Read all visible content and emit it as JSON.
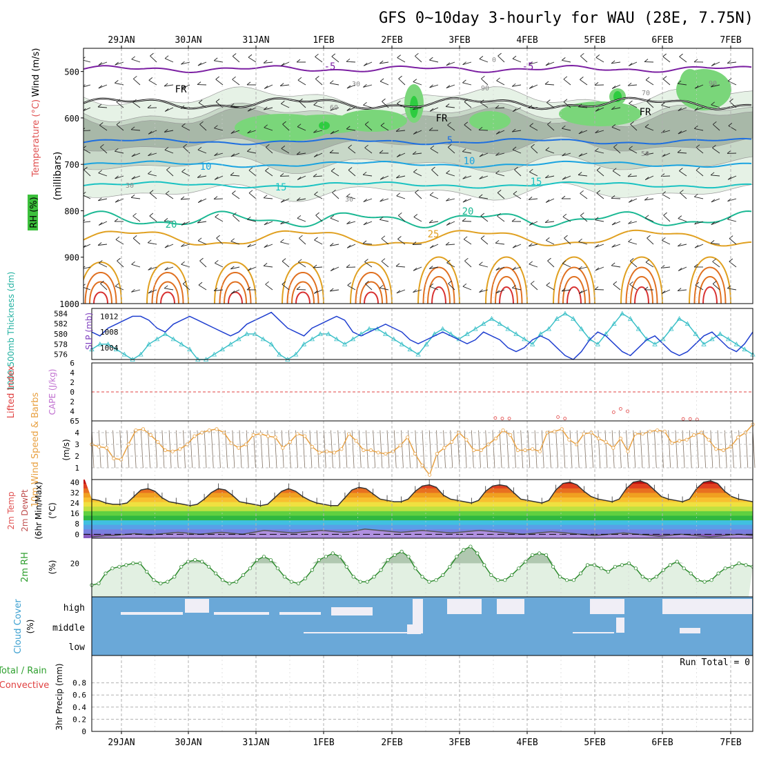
{
  "chart_data": [
    {
      "type": "meteogram-vertical",
      "title": "GFS 0~10day 3-hourly for WAU (28E, 7.75N)",
      "x_ticks": [
        "29JAN",
        "30JAN",
        "31JAN",
        "1FEB",
        "2FEB",
        "3FEB",
        "4FEB",
        "5FEB",
        "6FEB",
        "7FEB"
      ],
      "ylabel_left": [
        "RH (%)",
        "Temperature (°C)",
        "Wind (m/s)"
      ],
      "ylabel_right": "(millibars)",
      "yticks": [
        "500",
        "600",
        "700",
        "800",
        "900",
        "1000"
      ],
      "ylim": [
        1000,
        450
      ],
      "isotherm_labels": [
        "-5",
        "-5",
        "FR",
        "FR",
        "FR",
        "5",
        "10",
        "10",
        "15",
        "15",
        "20",
        "20",
        "25"
      ],
      "rh_labels": [
        "0",
        "30",
        "30",
        "30",
        "50",
        "60",
        "70",
        "90",
        "90"
      ],
      "colors": {
        "rh_light": "#e6f2e6",
        "rh_mid": "#c8d8c8",
        "rh_grey": "#a8b8a8",
        "rh_green": "#7ad67a",
        "rh_bright": "#2ecc40",
        "neg5": "#7b1fa2",
        "five": "#1e6fe0",
        "ten": "#19a3e0",
        "fifteen": "#19c2c2",
        "twenty": "#1ab893",
        "twentyfive": "#e0a020",
        "warm1": "#e07020",
        "warm2": "#d83030"
      }
    },
    {
      "type": "line",
      "ylabel": [
        "1000-500mb Thickness (dm)",
        "SLP (mb)"
      ],
      "yticks_left": [
        "584",
        "582",
        "580",
        "578",
        "576"
      ],
      "yticks_right": [
        "1012",
        "1008",
        "1004"
      ],
      "series": [
        {
          "name": "SLP",
          "color": "#1f3fd0",
          "values": [
            1008,
            1007,
            1009,
            1010,
            1011,
            1012,
            1012,
            1011,
            1009,
            1008,
            1010,
            1011,
            1012,
            1011,
            1010,
            1009,
            1008,
            1007,
            1008,
            1010,
            1011,
            1012,
            1013,
            1011,
            1009,
            1008,
            1007,
            1009,
            1010,
            1011,
            1012,
            1011,
            1008,
            1007,
            1008,
            1009,
            1010,
            1009,
            1008,
            1006,
            1005,
            1006,
            1007,
            1008,
            1007,
            1006,
            1005,
            1006,
            1008,
            1007,
            1006,
            1004,
            1003,
            1004,
            1006,
            1007,
            1006,
            1004,
            1002,
            1001,
            1003,
            1006,
            1008,
            1007,
            1005,
            1003,
            1002,
            1004,
            1006,
            1007,
            1005,
            1003,
            1002,
            1003,
            1005,
            1007,
            1008,
            1006,
            1004,
            1003,
            1005,
            1008
          ]
        },
        {
          "name": "Thickness",
          "color": "#3cc0c8",
          "values": [
            577,
            578,
            578,
            577,
            576,
            575,
            576,
            578,
            579,
            580,
            579,
            578,
            577,
            575,
            575,
            576,
            577,
            578,
            579,
            580,
            580,
            579,
            578,
            576,
            575,
            576,
            578,
            579,
            580,
            580,
            579,
            578,
            579,
            580,
            581,
            581,
            580,
            579,
            578,
            577,
            576,
            578,
            580,
            581,
            580,
            579,
            580,
            581,
            582,
            583,
            582,
            581,
            580,
            579,
            578,
            580,
            581,
            583,
            584,
            583,
            581,
            579,
            578,
            580,
            582,
            584,
            583,
            581,
            579,
            578,
            579,
            581,
            583,
            582,
            580,
            578,
            579,
            580,
            579,
            578,
            577,
            576
          ]
        }
      ]
    },
    {
      "type": "line",
      "ylabel": [
        "Lifted Index",
        "CAPE (J/kg)"
      ],
      "yticks": [
        "-6",
        "-4",
        "-2",
        "0",
        "2",
        "4",
        "6"
      ],
      "ylim": [
        -6,
        6
      ],
      "series": [
        {
          "name": "CAPE",
          "color": "#e04040",
          "values": [
            [
              58,
              5.4
            ],
            [
              59,
              5.5
            ],
            [
              60,
              5.5
            ],
            [
              67,
              5.2
            ],
            [
              68,
              5.5
            ],
            [
              75,
              4.2
            ],
            [
              76,
              3.5
            ],
            [
              77,
              4.0
            ],
            [
              85,
              5.6
            ],
            [
              86,
              5.6
            ],
            [
              87,
              5.7
            ]
          ]
        }
      ]
    },
    {
      "type": "line",
      "ylabel": [
        "10m Wind Speed & Barbs",
        "(m/s)"
      ],
      "yticks": [
        "5",
        "4",
        "3",
        "2",
        "1"
      ],
      "ylim": [
        0,
        5
      ],
      "series": [
        {
          "name": "Speed",
          "color": "#e8a040",
          "values": [
            3,
            2.8,
            2.7,
            1.8,
            1.7,
            3,
            4.2,
            4.3,
            3.8,
            3.2,
            2.5,
            2.4,
            2.6,
            3,
            3.7,
            4,
            4.2,
            4.3,
            4,
            3.1,
            2.7,
            3,
            3.8,
            3.9,
            3.7,
            3.6,
            2.7,
            3.2,
            3.9,
            3.7,
            2.8,
            2.3,
            2.4,
            2.3,
            2.6,
            3.9,
            3.3,
            2.5,
            2.5,
            2.3,
            2.2,
            2.4,
            2.9,
            3.6,
            2.2,
            1.2,
            0.4,
            2.2,
            2.7,
            3.2,
            4,
            3.4,
            2.5,
            2.5,
            3,
            3.5,
            4.2,
            3.8,
            2.5,
            2.5,
            2.6,
            2.4,
            4,
            4.1,
            4.3,
            3.4,
            3,
            3.9,
            4,
            3.5,
            3.2,
            2.7,
            3.5,
            2.4,
            3.9,
            3.9,
            4.1,
            4.2,
            4.1,
            3.1,
            3.3,
            3.4,
            3.8,
            4,
            3.4,
            2.6,
            2.5,
            2.8,
            3.6,
            4,
            4.7
          ]
        }
      ]
    },
    {
      "type": "area",
      "ylabel": [
        "2m Temp",
        "2m DewPt",
        "(6hr Min/Max)",
        "(°C)"
      ],
      "yticks": [
        "40",
        "32",
        "24",
        "16",
        "8",
        "0"
      ],
      "ylim": [
        -3,
        42
      ],
      "series": [
        {
          "name": "Temp",
          "color": "#333333",
          "values": [
            27,
            26,
            24,
            23,
            23,
            24,
            29,
            34,
            35,
            33,
            28,
            25,
            24,
            23,
            22,
            23,
            27,
            32,
            35,
            34,
            30,
            25,
            24,
            23,
            22,
            23,
            28,
            33,
            35,
            33,
            29,
            26,
            24,
            23,
            22,
            22,
            28,
            34,
            36,
            35,
            31,
            27,
            26,
            25,
            25,
            27,
            33,
            37,
            38,
            36,
            30,
            27,
            26,
            25,
            24,
            26,
            33,
            37,
            38,
            37,
            32,
            27,
            26,
            25,
            24,
            26,
            34,
            39,
            40,
            38,
            33,
            29,
            27,
            26,
            25,
            27,
            35,
            40,
            41,
            39,
            34,
            29,
            27,
            26,
            25,
            27,
            35,
            40,
            41,
            39,
            33,
            29,
            27,
            26,
            25
          ]
        },
        {
          "name": "DewPt",
          "color": "#555555",
          "values": [
            -2,
            -1.5,
            -1,
            -1,
            -0.5,
            0,
            0.5,
            0,
            -0.5,
            0,
            0.5,
            1,
            1.5,
            1,
            0.5,
            0,
            0.5,
            1,
            1.5,
            1,
            0.5,
            0,
            1,
            2,
            3,
            2.5,
            2,
            1.5,
            1,
            1.5,
            2,
            2.5,
            3,
            2.5,
            2,
            1.5,
            2,
            3,
            4,
            3.5,
            3,
            2.5,
            2,
            1.5,
            2,
            2.5,
            3,
            2.5,
            2,
            1.5,
            1,
            1.5,
            2,
            2.5,
            3,
            2.5,
            2,
            1.5,
            1,
            0.5,
            0,
            0.5,
            1,
            1.5,
            2,
            1.5,
            1,
            0.5,
            0,
            -0.5,
            -1,
            -0.5,
            0,
            0.5,
            1,
            0.5,
            0,
            -0.5,
            -1,
            -1.5,
            -1,
            -0.5,
            0,
            -0.5,
            -1,
            -1.5,
            -2,
            -1.5,
            -1,
            -0.5,
            0,
            -0.5,
            -1
          ]
        }
      ]
    },
    {
      "type": "area",
      "ylabel": [
        "2m RH",
        "(%)"
      ],
      "yticks": [
        "20"
      ],
      "ylim": [
        0,
        35
      ],
      "series": [
        {
          "name": "RH",
          "color": "#2e8b2e",
          "values": [
            7,
            8,
            14,
            17,
            18,
            19,
            20,
            20,
            15,
            10,
            8,
            9,
            12,
            18,
            21,
            22,
            21,
            18,
            14,
            10,
            8,
            9,
            13,
            17,
            22,
            24,
            22,
            17,
            12,
            9,
            8,
            11,
            16,
            22,
            24,
            26,
            24,
            18,
            12,
            9,
            9,
            12,
            16,
            22,
            25,
            27,
            24,
            17,
            12,
            9,
            10,
            13,
            18,
            24,
            28,
            30,
            26,
            19,
            13,
            10,
            10,
            13,
            17,
            21,
            25,
            26,
            25,
            18,
            12,
            10,
            10,
            14,
            19,
            19,
            17,
            15,
            18,
            19,
            20,
            17,
            12,
            10,
            12,
            16,
            19,
            21,
            17,
            14,
            10,
            9,
            10,
            14,
            17,
            18,
            20,
            19,
            18
          ]
        }
      ]
    },
    {
      "type": "area",
      "ylabel": [
        "Cloud Cover",
        "(%)"
      ],
      "yticks": [
        "high",
        "middle",
        "low"
      ],
      "colors": {
        "cloud": "#6aa8d8",
        "clear": "#f0eef6"
      }
    },
    {
      "type": "bar",
      "ylabel": [
        "Total / Rain",
        "Convective",
        "3hr Precip (mm)"
      ],
      "yticks": [
        "0.8",
        "0.6",
        "0.4",
        "0.2",
        "0"
      ],
      "ylim": [
        0,
        1
      ],
      "annotation": "Run Total = 0",
      "series": [
        {
          "name": "Total",
          "values": []
        },
        {
          "name": "Convective",
          "values": []
        }
      ]
    }
  ]
}
